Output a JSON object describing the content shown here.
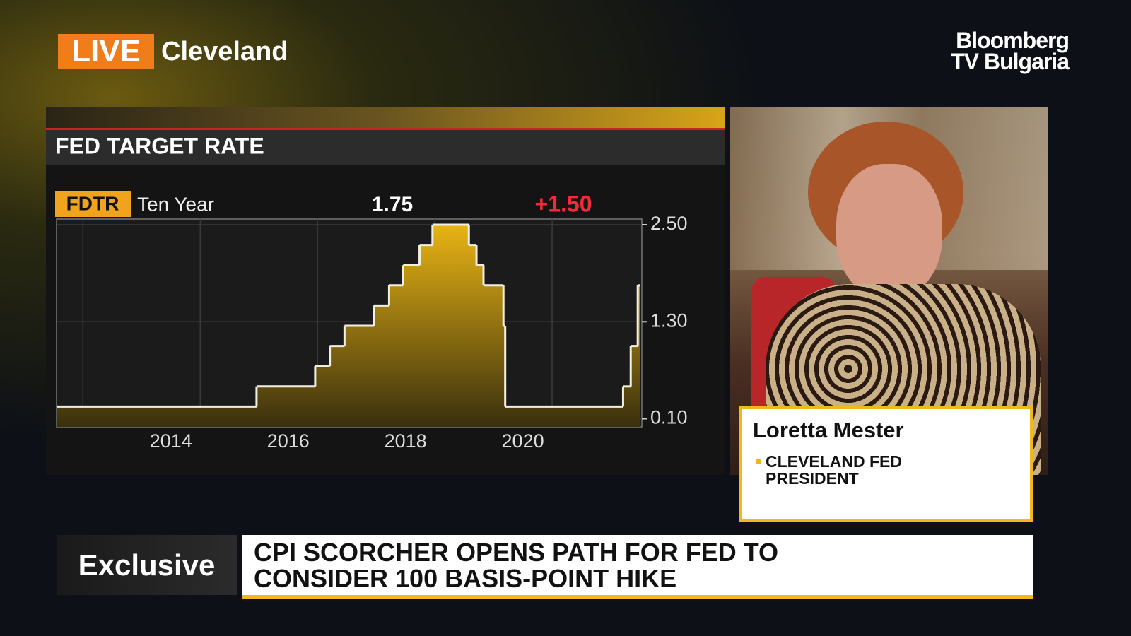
{
  "header": {
    "live": "LIVE",
    "location": "Cleveland",
    "network": [
      "Bloomberg",
      "TV Bulgaria"
    ]
  },
  "chart_header": {
    "ticker": "FDTR",
    "period": "Ten Year",
    "last": "1.75",
    "change": "+1.50"
  },
  "chart_data": {
    "type": "step",
    "title": "FED TARGET RATE",
    "x": [
      2012.55,
      2015.96,
      2016.96,
      2017.21,
      2017.46,
      2017.96,
      2018.22,
      2018.46,
      2018.74,
      2018.96,
      2019.58,
      2019.71,
      2019.83,
      2020.17,
      2020.2,
      2022.21,
      2022.34,
      2022.46
    ],
    "values": [
      0.25,
      0.5,
      0.75,
      1,
      1.25,
      1.5,
      1.75,
      2,
      2.25,
      2.5,
      2.25,
      2,
      1.75,
      1.25,
      0.25,
      0.5,
      1,
      1.75
    ],
    "color": "#f2efe0",
    "fill": "#e0ac10",
    "xlim": [
      2012.55,
      2022.53
    ],
    "ylim": [
      0,
      2.57
    ],
    "xticks": [
      {
        "value": 2014.5,
        "label": "2014"
      },
      {
        "value": 2016.5,
        "label": "2016"
      },
      {
        "value": 2018.5,
        "label": "2018"
      },
      {
        "value": 2020.5,
        "label": "2020"
      }
    ],
    "xgrid": [
      2013,
      2015,
      2017,
      2019,
      2021
    ],
    "yticks": [
      {
        "value": 0.1,
        "label": "0.10"
      },
      {
        "value": 1.3,
        "label": "1.30"
      },
      {
        "value": 2.5,
        "label": "2.50"
      }
    ],
    "grid": true
  },
  "lower_third": {
    "name": "Loretta Mester",
    "role": [
      "CLEVELAND FED",
      "PRESIDENT"
    ]
  },
  "ticker_bar": {
    "tag": "Exclusive",
    "headline": [
      "CPI SCORCHER OPENS PATH FOR FED TO",
      "CONSIDER 100 BASIS-POINT HIKE"
    ]
  }
}
